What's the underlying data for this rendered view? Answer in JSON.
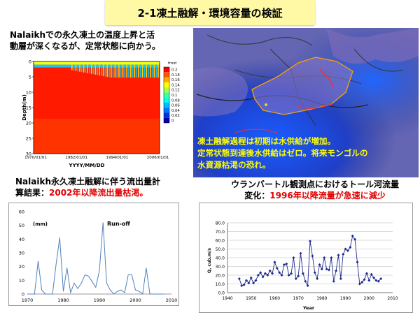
{
  "title": "2-1凍土融解・環境容量の検証",
  "top_left_caption": {
    "line1": "Nalaikhでの永久凍土の温度上昇と活",
    "line2": "動層が深くなるが、定常状態に向かう。"
  },
  "map_overlay": {
    "line1": "凍土融解過程は初期は水供給が増加。",
    "line2": "定常状態到達後水供給はゼロ。将来モンゴルの",
    "line3": "水資源枯渇の恐れ。"
  },
  "bottom_left_caption": {
    "line1": "Nalaikh永久凍土融解に伴う流出量計",
    "line2_prefix": "算結果：",
    "line2_highlight": "2002年以降流出量枯渇。"
  },
  "bottom_right_caption": {
    "line1": "ウランバートル観測点におけるトール河流量",
    "line2_prefix": "変化：",
    "line2_highlight": "1996年以降流量が急速に減少"
  },
  "colors": {
    "title_bg": "#fff9a6",
    "highlight_red": "#e00000",
    "overlay_yellow": "#ffff00"
  },
  "chart_data": [
    {
      "type": "heatmap",
      "xlabel": "YYYY/MM/DD",
      "ylabel": "Depth(m)",
      "x_tick_labels": [
        "1970/01/01",
        "1982/01/01",
        "1994/01/01",
        "2006/01/01"
      ],
      "y_ticks": [
        0,
        5,
        10,
        15,
        20,
        25,
        30
      ],
      "ylim": [
        0,
        30
      ],
      "colorbar_title": "frost",
      "colorbar_ticks": [
        "0.2",
        "0.18",
        "0.16",
        "0.14",
        "0.12",
        "0.1",
        "0.08",
        "0.06",
        "0.04",
        "0.02",
        "0"
      ]
    },
    {
      "type": "line",
      "title": "Run-off",
      "unit_label": "(mm)",
      "ylim": [
        0,
        60
      ],
      "y_ticks": [
        0,
        10,
        20,
        30,
        40,
        50,
        60
      ],
      "x_ticks": [
        1970,
        1980,
        1990,
        2000,
        2010
      ],
      "xlim": [
        1970,
        2010
      ],
      "x": [
        1970,
        1971,
        1972,
        1973,
        1974,
        1975,
        1976,
        1977,
        1978,
        1979,
        1980,
        1981,
        1982,
        1983,
        1984,
        1985,
        1986,
        1987,
        1988,
        1989,
        1990,
        1991,
        1992,
        1993,
        1994,
        1995,
        1996,
        1997,
        1998,
        1999,
        2000,
        2001,
        2002,
        2003,
        2004,
        2005,
        2006,
        2007,
        2008
      ],
      "values": [
        0,
        0,
        0,
        24,
        3,
        0,
        0,
        0,
        22,
        41,
        2,
        19,
        1,
        8,
        4,
        8,
        14,
        13,
        9,
        5,
        17,
        52,
        8,
        3,
        0,
        2,
        3,
        1,
        14,
        14,
        3,
        2,
        0,
        19,
        0,
        0,
        0,
        0,
        0
      ]
    },
    {
      "type": "line",
      "xlabel": "Year",
      "ylabel": "Q, cub.m/s",
      "ylim": [
        0,
        80
      ],
      "y_ticks": [
        "0.0",
        "10.0",
        "20.0",
        "30.0",
        "40.0",
        "50.0",
        "60.0",
        "70.0",
        "80.0"
      ],
      "x_ticks": [
        1940,
        1950,
        1960,
        1970,
        1980,
        1990,
        2000,
        2010
      ],
      "xlim": [
        1940,
        2010
      ],
      "x": [
        1945,
        1946,
        1947,
        1948,
        1949,
        1950,
        1951,
        1952,
        1953,
        1954,
        1955,
        1956,
        1957,
        1958,
        1959,
        1960,
        1961,
        1962,
        1963,
        1964,
        1965,
        1966,
        1967,
        1968,
        1969,
        1970,
        1971,
        1972,
        1973,
        1974,
        1975,
        1976,
        1977,
        1978,
        1979,
        1980,
        1981,
        1982,
        1983,
        1984,
        1985,
        1986,
        1987,
        1988,
        1989,
        1990,
        1991,
        1992,
        1993,
        1994,
        1995,
        1996,
        1997,
        1998,
        1999,
        2000,
        2001,
        2002,
        2003,
        2004,
        2005
      ],
      "values": [
        16,
        8,
        9,
        14,
        11,
        17,
        11,
        14,
        20,
        23,
        18,
        22,
        20,
        25,
        22,
        35,
        28,
        23,
        20,
        32,
        33,
        20,
        22,
        40,
        16,
        19,
        45,
        22,
        13,
        8,
        59,
        42,
        23,
        16,
        32,
        27,
        40,
        27,
        26,
        40,
        13,
        25,
        43,
        16,
        44,
        50,
        48,
        52,
        65,
        61,
        35,
        10,
        12,
        15,
        22,
        14,
        21,
        17,
        14,
        13,
        16
      ]
    }
  ]
}
